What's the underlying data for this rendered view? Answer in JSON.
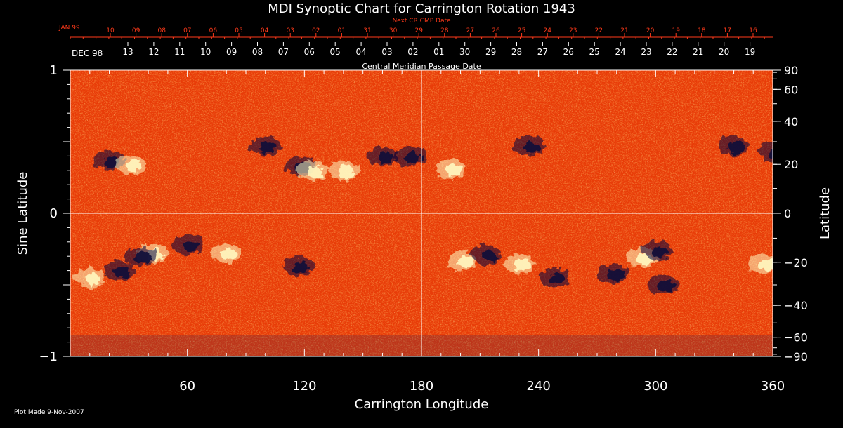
{
  "chart_data": {
    "type": "heatmap",
    "title": "MDI Synoptic Chart for Carrington Rotation 1943",
    "xlabel": "Carrington Longitude",
    "ylabel_left": "Sine Latitude",
    "ylabel_right": "Latitude",
    "xlim": [
      0,
      360
    ],
    "ylim": [
      -1,
      1
    ],
    "x_ticks": [
      60,
      120,
      180,
      240,
      300,
      360
    ],
    "y_ticks_left": [
      {
        "value": 1,
        "label": "1"
      },
      {
        "value": 0,
        "label": "0"
      },
      {
        "value": -1,
        "label": "−1"
      }
    ],
    "y_ticks_right": [
      {
        "lat": 90,
        "label": "90"
      },
      {
        "lat": 60,
        "label": "60"
      },
      {
        "lat": 40,
        "label": "40"
      },
      {
        "lat": 20,
        "label": "20"
      },
      {
        "lat": 0,
        "label": "0"
      },
      {
        "lat": -20,
        "label": "−20"
      },
      {
        "lat": -40,
        "label": "−40"
      },
      {
        "lat": -60,
        "label": "−60"
      },
      {
        "lat": -90,
        "label": "−90"
      }
    ],
    "top_axis": {
      "label": "Central Meridian Passage Date",
      "month_label": "DEC 98",
      "dates": [
        "13",
        "12",
        "11",
        "10",
        "09",
        "08",
        "07",
        "06",
        "05",
        "04",
        "03",
        "02",
        "01",
        "30",
        "29",
        "28",
        "27",
        "26",
        "25",
        "24",
        "23",
        "22",
        "21",
        "20",
        "19"
      ]
    },
    "top_axis_next": {
      "label": "Next CR CMP Date",
      "month_label": "JAN 99",
      "dates": [
        "10",
        "09",
        "08",
        "07",
        "06",
        "05",
        "04",
        "03",
        "02",
        "01",
        "31",
        "30",
        "29",
        "28",
        "27",
        "26",
        "25",
        "24",
        "23",
        "22",
        "21",
        "20",
        "19",
        "18",
        "17",
        "16"
      ]
    },
    "colors": {
      "background": "#000000",
      "field_base": "#ff4a10",
      "positive": "#fff8c0",
      "negative": "#0a0a3a",
      "next_axis": "#ff3a1a"
    },
    "features": [
      {
        "polarity": "negative",
        "lon": 20,
        "sinlat": 0.37
      },
      {
        "polarity": "positive",
        "lon": 31,
        "sinlat": 0.34
      },
      {
        "polarity": "negative",
        "lon": 100,
        "sinlat": 0.47
      },
      {
        "polarity": "negative",
        "lon": 118,
        "sinlat": 0.33
      },
      {
        "polarity": "positive",
        "lon": 124,
        "sinlat": 0.3
      },
      {
        "polarity": "positive",
        "lon": 140,
        "sinlat": 0.3
      },
      {
        "polarity": "negative",
        "lon": 160,
        "sinlat": 0.4
      },
      {
        "polarity": "negative",
        "lon": 174,
        "sinlat": 0.4
      },
      {
        "polarity": "positive",
        "lon": 195,
        "sinlat": 0.31
      },
      {
        "polarity": "negative",
        "lon": 235,
        "sinlat": 0.47
      },
      {
        "polarity": "negative",
        "lon": 340,
        "sinlat": 0.47
      },
      {
        "polarity": "negative",
        "lon": 361,
        "sinlat": 0.43
      },
      {
        "polarity": "positive",
        "lon": 10,
        "sinlat": -0.45
      },
      {
        "polarity": "negative",
        "lon": 25,
        "sinlat": -0.4
      },
      {
        "polarity": "positive",
        "lon": 42,
        "sinlat": -0.28
      },
      {
        "polarity": "negative",
        "lon": 36,
        "sinlat": -0.3
      },
      {
        "polarity": "negative",
        "lon": 60,
        "sinlat": -0.22
      },
      {
        "polarity": "positive",
        "lon": 80,
        "sinlat": -0.28
      },
      {
        "polarity": "negative",
        "lon": 117,
        "sinlat": -0.37
      },
      {
        "polarity": "positive",
        "lon": 201,
        "sinlat": -0.33
      },
      {
        "polarity": "negative",
        "lon": 213,
        "sinlat": -0.29
      },
      {
        "polarity": "positive",
        "lon": 230,
        "sinlat": -0.35
      },
      {
        "polarity": "negative",
        "lon": 248,
        "sinlat": -0.45
      },
      {
        "polarity": "negative",
        "lon": 278,
        "sinlat": -0.42
      },
      {
        "polarity": "positive",
        "lon": 293,
        "sinlat": -0.31
      },
      {
        "polarity": "negative",
        "lon": 301,
        "sinlat": -0.26
      },
      {
        "polarity": "negative",
        "lon": 304,
        "sinlat": -0.5
      },
      {
        "polarity": "positive",
        "lon": 355,
        "sinlat": -0.35
      }
    ]
  },
  "footer": {
    "plot_made": "Plot Made  9-Nov-2007"
  }
}
